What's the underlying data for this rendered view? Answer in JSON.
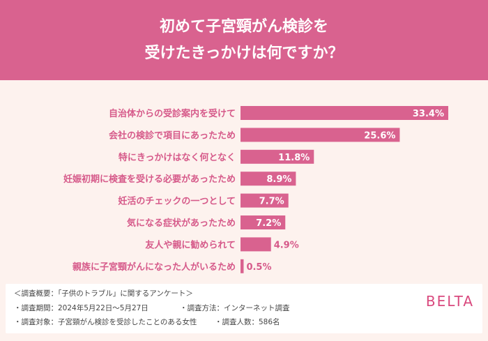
{
  "title_lines": [
    "初めて子宮頸がん検診を",
    "受けたきっかけは何ですか？"
  ],
  "colors": {
    "accent": "#d9628f",
    "bar": "#d9628f",
    "label": "#d65a8a",
    "background": "#fdf2ee"
  },
  "chart_data": {
    "type": "bar",
    "orientation": "horizontal",
    "title": "初めて子宮頸がん検診を受けたきっかけは何ですか？",
    "categories": [
      "自治体からの受診案内を受けて",
      "会社の検診で項目にあったため",
      "特にきっかけはなく何となく",
      "妊娠初期に検査を受ける必要があったため",
      "妊活のチェックの一つとして",
      "気になる症状があったため",
      "友人や親に勧められて",
      "親族に子宮頸がんになった人がいるため"
    ],
    "values": [
      33.4,
      25.6,
      11.8,
      8.9,
      7.7,
      7.2,
      4.9,
      0.5
    ],
    "value_labels": [
      "33.4%",
      "25.6%",
      "11.8%",
      "8.9%",
      "7.7%",
      "7.2%",
      "4.9%",
      "0.5%"
    ],
    "grid": false
  },
  "footer": {
    "line1": "＜調査概要：「子供のトラブル」に関するアンケート＞",
    "line2a": "・調査期間：2024年5月22日〜5月27日",
    "line2b": "・調査方法：インターネット調査",
    "line3a": "・調査対象：子宮頸がん検診を受診したことのある女性",
    "line3b": "・調査人数：586名",
    "logo": "BELTA"
  }
}
